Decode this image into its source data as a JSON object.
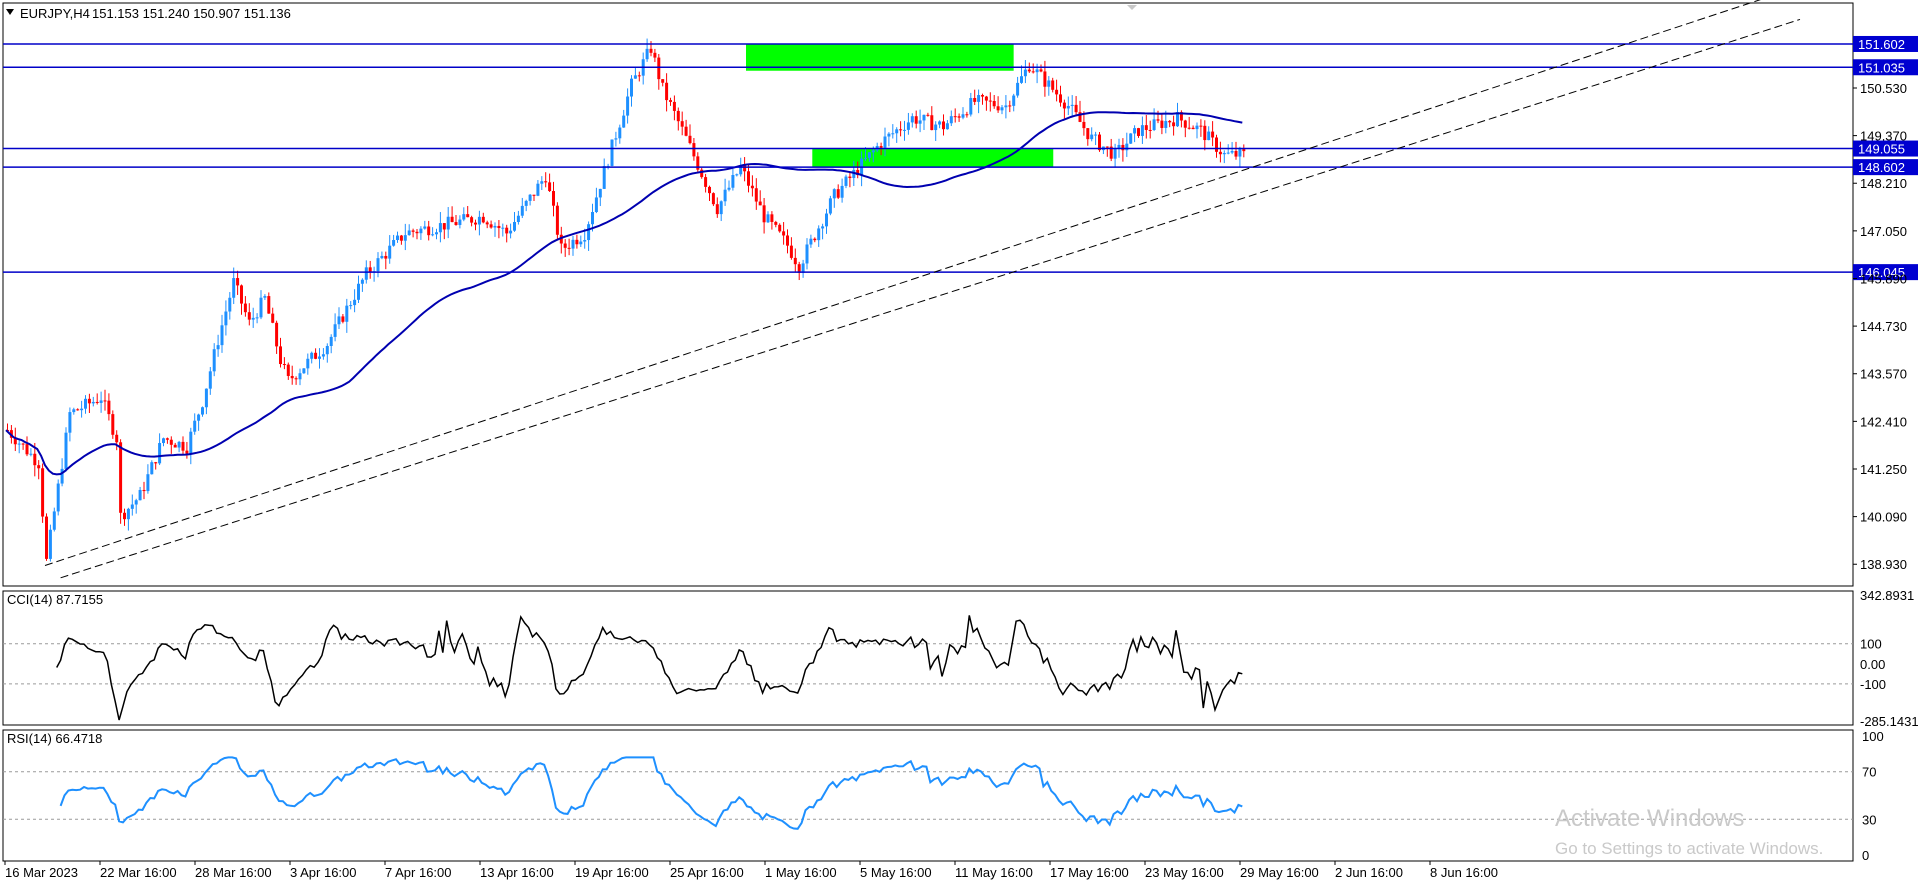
{
  "header": {
    "symbol": "EURJPY,H4",
    "ohlc": "151.153 151.240 150.907 151.136"
  },
  "price_axis": {
    "min": 138.4,
    "max": 152.6,
    "ticks": [
      "150.530",
      "149.370",
      "148.210",
      "147.050",
      "145.890",
      "144.730",
      "143.570",
      "142.410",
      "141.250",
      "140.090",
      "138.930"
    ]
  },
  "horizontal_lines": [
    {
      "price": 151.602,
      "label": "151.602"
    },
    {
      "price": 151.035,
      "label": "151.035"
    },
    {
      "price": 149.055,
      "label": "149.055"
    },
    {
      "price": 148.602,
      "label": "148.602"
    },
    {
      "price": 146.045,
      "label": "146.045"
    }
  ],
  "zones": [
    {
      "from_bar": 200,
      "to_bar": 345,
      "top": 151.6,
      "bottom": 150.95,
      "color": "#00ff00"
    },
    {
      "from_bar": 217,
      "to_bar": 345,
      "top": 149.06,
      "bottom": 148.6,
      "color": "#00ff00"
    }
  ],
  "trendlines": [
    {
      "bar1": 10,
      "price1": 138.9,
      "bar2": 460,
      "price2": 153.0
    },
    {
      "bar1": 14,
      "price1": 138.6,
      "bar2": 460,
      "price2": 152.2
    }
  ],
  "ma": {
    "period": 60,
    "color": "#0000b0"
  },
  "candles": {
    "count": 390,
    "up_color": "#1e90ff",
    "down_color": "#ff0000"
  },
  "time_axis": {
    "labels": [
      "16 Mar 2023",
      "22 Mar 16:00",
      "28 Mar 16:00",
      "3 Apr 16:00",
      "7 Apr 16:00",
      "13 Apr 16:00",
      "19 Apr 16:00",
      "25 Apr 16:00",
      "1 May 16:00",
      "5 May 16:00",
      "11 May 16:00",
      "17 May 16:00",
      "23 May 16:00",
      "29 May 16:00",
      "2 Jun 16:00",
      "8 Jun 16:00"
    ]
  },
  "cci": {
    "title": "CCI(14) 87.7155",
    "ticks": [
      "342.8931",
      "100",
      "0.00",
      "-100",
      "-285.1431"
    ],
    "min": -285.1431,
    "max": 342.8931
  },
  "rsi": {
    "title": "RSI(14) 66.4718",
    "ticks": [
      "100",
      "70",
      "30",
      "0"
    ],
    "line_color": "#1e90ff"
  },
  "watermark": {
    "title": "Activate Windows",
    "subtitle": "Go to Settings to activate Windows."
  },
  "colors": {
    "line_blue": "#0000c8",
    "tag_blue": "#0000d0",
    "grid": "#c0c0c0",
    "text": "#000000"
  }
}
